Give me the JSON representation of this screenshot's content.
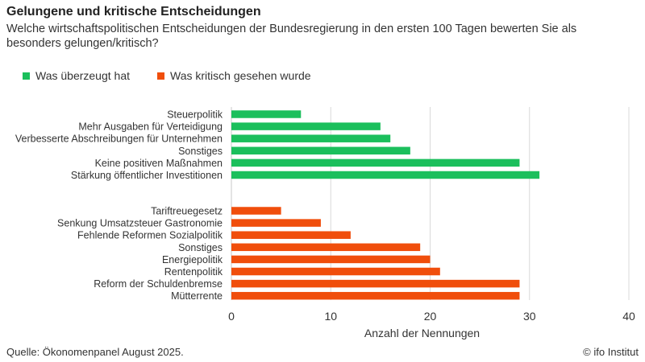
{
  "header": {
    "title": "Gelungene und kritische Entscheidungen",
    "subtitle": "Welche wirtschaftspolitischen Entscheidungen der Bundesregierung in den ersten 100 Tagen bewerten Sie als besonders gelungen/kritisch?"
  },
  "legend": [
    {
      "label": "Was überzeugt hat",
      "color": "#1bbf5c"
    },
    {
      "label": "Was kritisch gesehen wurde",
      "color": "#f04e0c"
    }
  ],
  "chart_data": {
    "type": "bar",
    "orientation": "horizontal",
    "xlabel": "Anzahl der Nennungen",
    "xlim": [
      0,
      40
    ],
    "xticks": [
      0,
      10,
      20,
      30,
      40
    ],
    "grid": true,
    "legend_position": "top-left",
    "groups": [
      {
        "name": "Was überzeugt hat",
        "color": "#1bbf5c",
        "categories": [
          "Steuerpolitik",
          "Mehr Ausgaben für Verteidigung",
          "Verbesserte Abschreibungen für Unternehmen",
          "Sonstiges",
          "Keine positiven Maßnahmen",
          "Stärkung öffentlicher Investitionen"
        ],
        "values": [
          7,
          15,
          16,
          18,
          29,
          31
        ]
      },
      {
        "name": "Was kritisch gesehen wurde",
        "color": "#f04e0c",
        "categories": [
          "Tariftreuegesetz",
          "Senkung Umsatzsteuer Gastronomie",
          "Fehlende Reformen Sozialpolitik",
          "Sonstiges",
          "Energiepolitik",
          "Rentenpolitik",
          "Reform der Schuldenbremse",
          "Mütterrente"
        ],
        "values": [
          5,
          9,
          12,
          19,
          20,
          21,
          29,
          29
        ]
      }
    ]
  },
  "footer": {
    "source": "Quelle: Ökonomenpanel August 2025.",
    "copyright": "© ifo Institut"
  }
}
